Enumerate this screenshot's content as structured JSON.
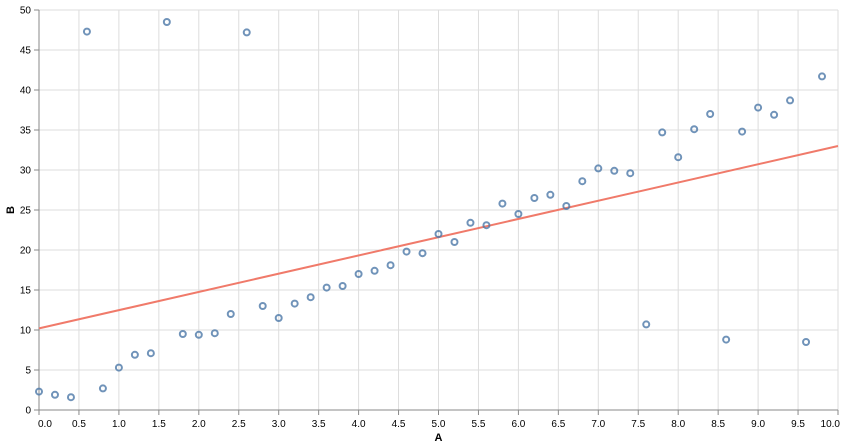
{
  "chart_data": {
    "type": "scatter",
    "title": "",
    "xlabel": "A",
    "ylabel": "B",
    "xlim": [
      0,
      10
    ],
    "ylim": [
      0,
      50
    ],
    "grid": true,
    "x_ticks": [
      "0.0",
      "0.5",
      "1.0",
      "1.5",
      "2.0",
      "2.5",
      "3.0",
      "3.5",
      "4.0",
      "4.5",
      "5.0",
      "5.5",
      "6.0",
      "6.5",
      "7.0",
      "7.5",
      "8.0",
      "8.5",
      "9.0",
      "9.5",
      "10.0"
    ],
    "y_ticks": [
      "0",
      "5",
      "10",
      "15",
      "20",
      "25",
      "30",
      "35",
      "40",
      "45",
      "50"
    ],
    "colors": {
      "points": "#4c78a8",
      "trend": "#f07a6a"
    },
    "points": [
      {
        "x": 0.0,
        "y": 2.3
      },
      {
        "x": 0.2,
        "y": 1.9
      },
      {
        "x": 0.4,
        "y": 1.6
      },
      {
        "x": 0.6,
        "y": 47.3
      },
      {
        "x": 0.8,
        "y": 2.7
      },
      {
        "x": 1.0,
        "y": 5.3
      },
      {
        "x": 1.2,
        "y": 6.9
      },
      {
        "x": 1.4,
        "y": 7.1
      },
      {
        "x": 1.6,
        "y": 48.5
      },
      {
        "x": 1.8,
        "y": 9.5
      },
      {
        "x": 2.0,
        "y": 9.4
      },
      {
        "x": 2.2,
        "y": 9.6
      },
      {
        "x": 2.4,
        "y": 12.0
      },
      {
        "x": 2.6,
        "y": 47.2
      },
      {
        "x": 2.8,
        "y": 13.0
      },
      {
        "x": 3.0,
        "y": 11.5
      },
      {
        "x": 3.2,
        "y": 13.3
      },
      {
        "x": 3.4,
        "y": 14.1
      },
      {
        "x": 3.6,
        "y": 15.3
      },
      {
        "x": 3.8,
        "y": 15.5
      },
      {
        "x": 4.0,
        "y": 17.0
      },
      {
        "x": 4.2,
        "y": 17.4
      },
      {
        "x": 4.4,
        "y": 18.1
      },
      {
        "x": 4.6,
        "y": 19.8
      },
      {
        "x": 4.8,
        "y": 19.6
      },
      {
        "x": 5.0,
        "y": 22.0
      },
      {
        "x": 5.2,
        "y": 21.0
      },
      {
        "x": 5.4,
        "y": 23.4
      },
      {
        "x": 5.6,
        "y": 23.1
      },
      {
        "x": 5.8,
        "y": 25.8
      },
      {
        "x": 6.0,
        "y": 24.5
      },
      {
        "x": 6.2,
        "y": 26.5
      },
      {
        "x": 6.4,
        "y": 26.9
      },
      {
        "x": 6.6,
        "y": 25.5
      },
      {
        "x": 6.8,
        "y": 28.6
      },
      {
        "x": 7.0,
        "y": 30.2
      },
      {
        "x": 7.2,
        "y": 29.9
      },
      {
        "x": 7.4,
        "y": 29.6
      },
      {
        "x": 7.6,
        "y": 10.7
      },
      {
        "x": 7.8,
        "y": 34.7
      },
      {
        "x": 8.0,
        "y": 31.6
      },
      {
        "x": 8.2,
        "y": 35.1
      },
      {
        "x": 8.4,
        "y": 37.0
      },
      {
        "x": 8.6,
        "y": 8.8
      },
      {
        "x": 8.8,
        "y": 34.8
      },
      {
        "x": 9.0,
        "y": 37.8
      },
      {
        "x": 9.2,
        "y": 36.9
      },
      {
        "x": 9.4,
        "y": 38.7
      },
      {
        "x": 9.6,
        "y": 8.5
      },
      {
        "x": 9.8,
        "y": 41.7
      }
    ],
    "trend_line": {
      "x": [
        0,
        10
      ],
      "y": [
        10.2,
        33.0
      ]
    }
  }
}
